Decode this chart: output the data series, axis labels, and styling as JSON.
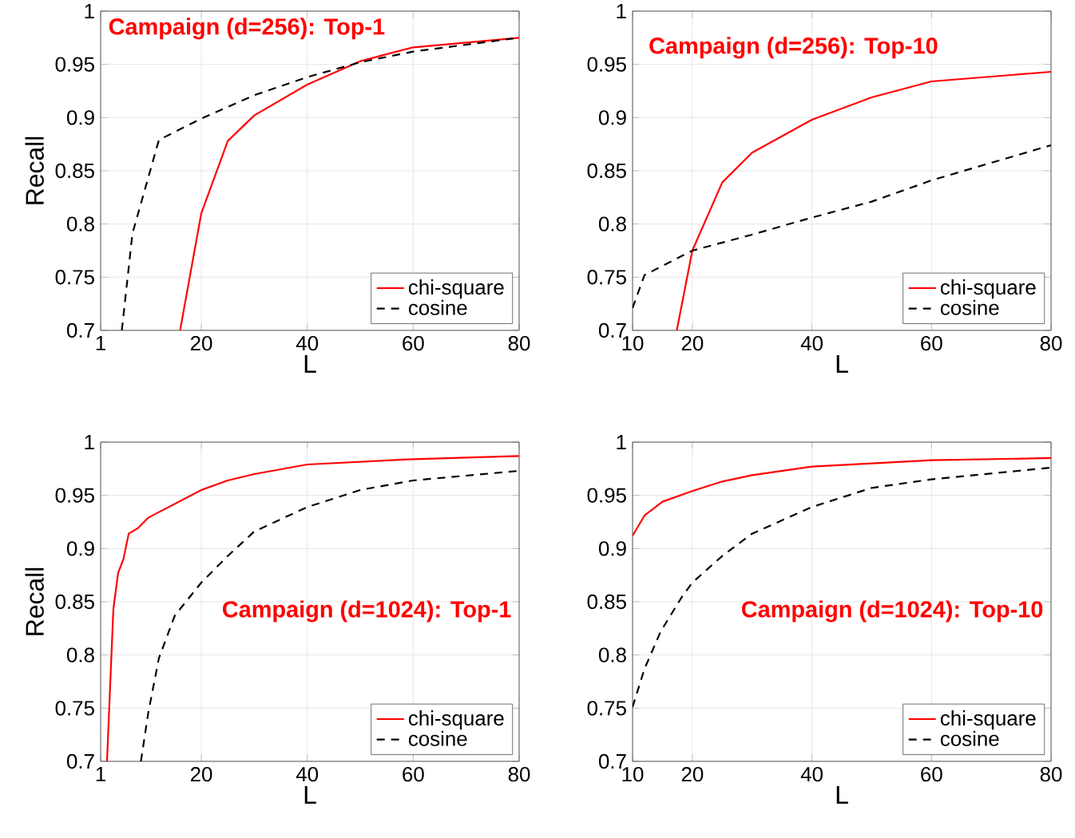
{
  "chart_data": [
    {
      "type": "line",
      "title": "Campaign (d=256): Top-1",
      "xlabel": "L",
      "ylabel": "Recall",
      "xlim": [
        1,
        80
      ],
      "xticks": [
        1,
        20,
        40,
        60,
        80
      ],
      "ylim": [
        0.7,
        1
      ],
      "yticks": [
        0.7,
        0.75,
        0.8,
        0.85,
        0.9,
        0.95,
        1
      ],
      "grid": true,
      "legend": "bottom right",
      "series": [
        {
          "name": "chi-square",
          "color": "#ff0000",
          "line_style": "solid",
          "x": [
            16,
            20,
            25,
            30,
            40,
            50,
            60,
            80
          ],
          "values": [
            0.7,
            0.81,
            0.878,
            0.902,
            0.931,
            0.953,
            0.966,
            0.975
          ]
        },
        {
          "name": "cosine",
          "color": "#000000",
          "line_style": "dashed",
          "x": [
            5,
            7,
            12,
            20,
            30,
            40,
            50,
            60,
            80
          ],
          "values": [
            0.7,
            0.791,
            0.879,
            0.899,
            0.921,
            0.938,
            0.952,
            0.962,
            0.975
          ]
        }
      ]
    },
    {
      "type": "line",
      "title": "Campaign (d=256): Top-10",
      "xlabel": "L",
      "xlim": [
        10,
        80
      ],
      "xticks": [
        10,
        20,
        40,
        60,
        80
      ],
      "ylim": [
        0.7,
        1
      ],
      "yticks": [
        0.7,
        0.75,
        0.8,
        0.85,
        0.9,
        0.95,
        1
      ],
      "grid": true,
      "legend": "bottom right",
      "series": [
        {
          "name": "chi-square",
          "color": "#ff0000",
          "line_style": "solid",
          "x": [
            17.4,
            20,
            25,
            30,
            40,
            50,
            60,
            80
          ],
          "values": [
            0.7,
            0.775,
            0.839,
            0.867,
            0.898,
            0.919,
            0.934,
            0.943
          ]
        },
        {
          "name": "cosine",
          "color": "#000000",
          "line_style": "dashed",
          "x": [
            10,
            12,
            20,
            30,
            40,
            50,
            60,
            80
          ],
          "values": [
            0.721,
            0.752,
            0.775,
            0.79,
            0.806,
            0.821,
            0.841,
            0.874
          ]
        }
      ]
    },
    {
      "type": "line",
      "title": "Campaign (d=1024): Top-1",
      "xlabel": "L",
      "ylabel": "Recall",
      "xlim": [
        1,
        80
      ],
      "xticks": [
        1,
        20,
        40,
        60,
        80
      ],
      "ylim": [
        0.7,
        1
      ],
      "yticks": [
        0.7,
        0.75,
        0.8,
        0.85,
        0.9,
        0.95,
        1
      ],
      "grid": true,
      "legend": "bottom right",
      "series": [
        {
          "name": "chi-square",
          "color": "#ff0000",
          "line_style": "solid",
          "x": [
            2.2,
            3.4,
            4.3,
            5.3,
            6.3,
            8,
            10,
            15,
            20,
            25,
            30,
            40,
            60,
            80
          ],
          "values": [
            0.7,
            0.843,
            0.877,
            0.89,
            0.914,
            0.919,
            0.929,
            0.942,
            0.955,
            0.964,
            0.97,
            0.979,
            0.984,
            0.987
          ]
        },
        {
          "name": "cosine",
          "color": "#000000",
          "line_style": "dashed",
          "x": [
            8.6,
            10,
            12,
            15,
            20,
            25,
            30,
            40,
            50,
            60,
            80
          ],
          "values": [
            0.7,
            0.746,
            0.797,
            0.837,
            0.868,
            0.893,
            0.916,
            0.939,
            0.955,
            0.964,
            0.973
          ]
        }
      ]
    },
    {
      "type": "line",
      "title": "Campaign (d=1024): Top-10",
      "xlabel": "L",
      "xlim": [
        10,
        80
      ],
      "xticks": [
        10,
        20,
        40,
        60,
        80
      ],
      "ylim": [
        0.7,
        1
      ],
      "yticks": [
        0.7,
        0.75,
        0.8,
        0.85,
        0.9,
        0.95,
        1
      ],
      "grid": true,
      "legend": "bottom right",
      "series": [
        {
          "name": "chi-square",
          "color": "#ff0000",
          "line_style": "solid",
          "x": [
            10,
            12,
            15,
            20,
            25,
            30,
            40,
            60,
            80
          ],
          "values": [
            0.912,
            0.931,
            0.944,
            0.954,
            0.963,
            0.969,
            0.977,
            0.983,
            0.985
          ]
        },
        {
          "name": "cosine",
          "color": "#000000",
          "line_style": "dashed",
          "x": [
            10,
            12,
            14.7,
            18.3,
            20,
            25,
            30,
            40,
            50,
            60,
            80
          ],
          "values": [
            0.751,
            0.787,
            0.822,
            0.855,
            0.868,
            0.893,
            0.914,
            0.939,
            0.957,
            0.965,
            0.976
          ]
        }
      ]
    }
  ]
}
